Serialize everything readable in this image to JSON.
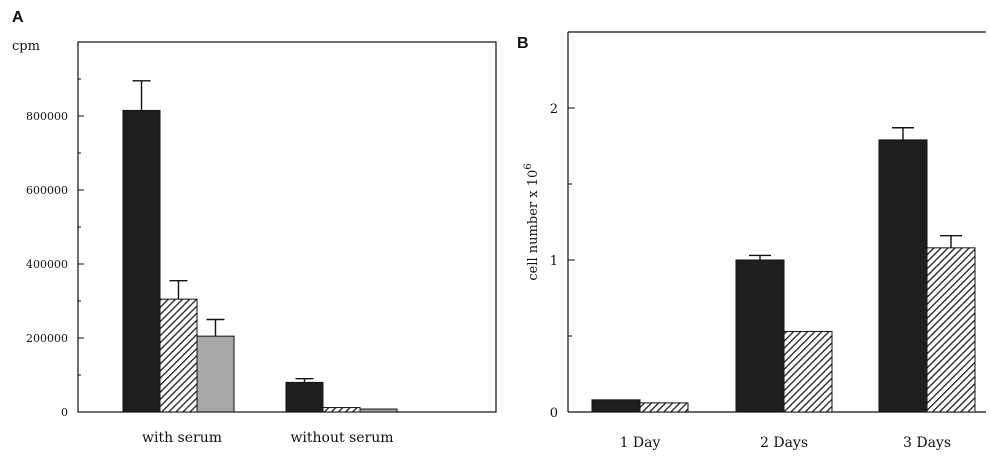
{
  "chart_data": [
    {
      "type": "bar",
      "panel": "A",
      "ylabel": "cpm",
      "categories": [
        "with serum",
        "without serum"
      ],
      "ylim": [
        0,
        1000000
      ],
      "yticks": [
        0,
        200000,
        400000,
        600000,
        800000
      ],
      "ytick_labels": [
        "0",
        "200000",
        "400000",
        "600000",
        "800000"
      ],
      "series": [
        {
          "style": "solid",
          "color": "#1e1e1e",
          "values": [
            815000,
            80000
          ],
          "errors": [
            80000,
            10000
          ]
        },
        {
          "style": "hatched",
          "color": "#1e1e1e",
          "values": [
            305000,
            12000
          ],
          "errors": [
            50000,
            0
          ]
        },
        {
          "style": "gray",
          "color": "#a8a8a8",
          "values": [
            205000,
            8000
          ],
          "errors": [
            45000,
            0
          ]
        }
      ],
      "grid": false
    },
    {
      "type": "bar",
      "panel": "B",
      "ylabel": "cell number x 10",
      "ylabel_sup": "6",
      "categories": [
        "1 Day",
        "2 Days",
        "3 Days"
      ],
      "ylim": [
        0,
        2.5
      ],
      "yticks": [
        0,
        1,
        2
      ],
      "ytick_labels": [
        "0",
        "1",
        "2"
      ],
      "series": [
        {
          "style": "solid",
          "color": "#1e1e1e",
          "values": [
            0.08,
            1.0,
            1.79
          ],
          "errors": [
            0.0,
            0.03,
            0.08
          ]
        },
        {
          "style": "hatched",
          "color": "#1e1e1e",
          "values": [
            0.06,
            0.53,
            1.08
          ],
          "errors": [
            0.0,
            0.0,
            0.08
          ]
        }
      ],
      "grid": false
    }
  ]
}
